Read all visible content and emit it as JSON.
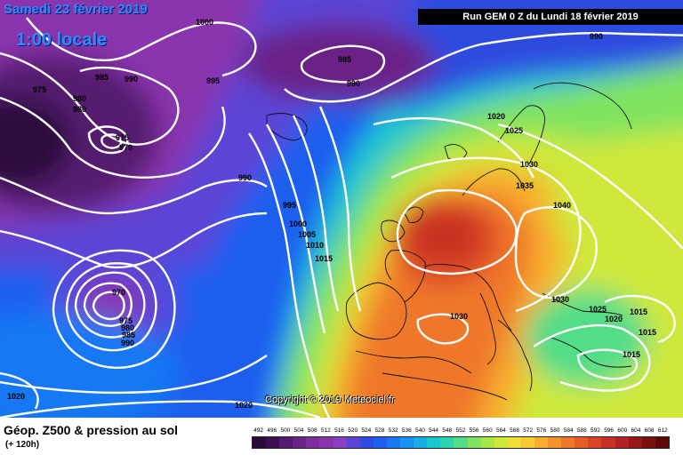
{
  "header": {
    "date_line": "Samedi 23 février 2019",
    "time_line": "1:00 locale",
    "run_info": "Run GEM 0 Z du Lundi 18 février 2019"
  },
  "copyright": "Copyright © 2019 Meteociel.fr",
  "footer": {
    "title": "Géop. Z500 & pression au sol",
    "subtitle": "(+ 120h)"
  },
  "legend": {
    "values": [
      "492",
      "496",
      "500",
      "504",
      "508",
      "512",
      "516",
      "520",
      "524",
      "528",
      "532",
      "536",
      "540",
      "544",
      "548",
      "552",
      "556",
      "560",
      "564",
      "568",
      "572",
      "576",
      "580",
      "584",
      "588",
      "592",
      "596",
      "600",
      "604",
      "608",
      "612"
    ],
    "colors": [
      "#2a0a3a",
      "#3c0f55",
      "#541a70",
      "#6a2387",
      "#7d2d9c",
      "#8a34ad",
      "#8a3fc5",
      "#5c45d6",
      "#2f4be0",
      "#1f5fef",
      "#1878f4",
      "#1693f3",
      "#17aee6",
      "#1ac6d0",
      "#2cd5b0",
      "#52dd88",
      "#7fe35e",
      "#a8e845",
      "#cfe83a",
      "#eede35",
      "#f8c932",
      "#f8ae2f",
      "#f5922c",
      "#ef7729",
      "#e65c27",
      "#da4426",
      "#c83224",
      "#b32222",
      "#961818",
      "#7a1010",
      "#5e0808"
    ]
  },
  "isobar_labels": [
    {
      "text": "1000"
    },
    {
      "text": "985"
    },
    {
      "text": "990"
    },
    {
      "text": "975"
    },
    {
      "text": "980"
    },
    {
      "text": "980"
    },
    {
      "text": "975"
    },
    {
      "text": "970"
    },
    {
      "text": "995"
    },
    {
      "text": "985"
    },
    {
      "text": "990"
    },
    {
      "text": "990"
    },
    {
      "text": "1020"
    },
    {
      "text": "1025"
    },
    {
      "text": "1030"
    },
    {
      "text": "1035"
    },
    {
      "text": "1040"
    },
    {
      "text": "990"
    },
    {
      "text": "995"
    },
    {
      "text": "1000"
    },
    {
      "text": "1005"
    },
    {
      "text": "1010"
    },
    {
      "text": "1015"
    },
    {
      "text": "970"
    },
    {
      "text": "975"
    },
    {
      "text": "980"
    },
    {
      "text": "985"
    },
    {
      "text": "990"
    },
    {
      "text": "1030"
    },
    {
      "text": "1030"
    },
    {
      "text": "1025"
    },
    {
      "text": "1020"
    },
    {
      "text": "1015"
    },
    {
      "text": "1015"
    },
    {
      "text": "1015"
    },
    {
      "text": "1020"
    },
    {
      "text": "1020"
    }
  ]
}
